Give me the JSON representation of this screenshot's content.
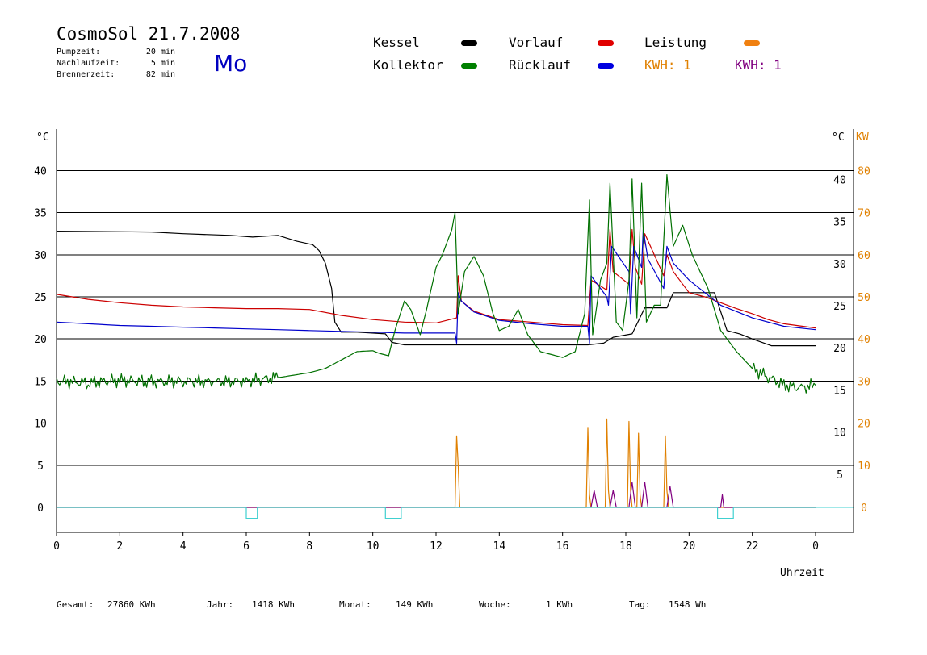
{
  "header": {
    "title": "CosmoSol 21.7.2008",
    "day": "Mo",
    "stats": [
      {
        "label": "Pumpzeit:",
        "value": "20 min"
      },
      {
        "label": "Nachlaufzeit:",
        "value": "5 min"
      },
      {
        "label": "Brennerzeit:",
        "value": "82 min"
      }
    ]
  },
  "legend": {
    "kessel": {
      "label": "Kessel",
      "color": "#000000"
    },
    "kollektor": {
      "label": "Kollektor",
      "color": "#008000"
    },
    "vorlauf": {
      "label": "Vorlauf",
      "color": "#e00000"
    },
    "ruecklauf": {
      "label": "Rücklauf",
      "color": "#0000e0"
    },
    "leistung": {
      "label": "Leistung",
      "color": "#f08010"
    },
    "kwh_orange": {
      "label": "KWH: 1",
      "color": "#e08000"
    },
    "kwh_purple": {
      "label": "KWH: 1",
      "color": "#800080"
    }
  },
  "footer": {
    "gesamt": {
      "label": "Gesamt:",
      "value": "27860 KWh"
    },
    "jahr": {
      "label": "Jahr:",
      "value": "1418 KWh"
    },
    "monat": {
      "label": "Monat:",
      "value": "149 KWh"
    },
    "woche": {
      "label": "Woche:",
      "value": "1 KWh"
    },
    "tag": {
      "label": "Tag:",
      "value": "1548 Wh"
    }
  },
  "chart_data": {
    "type": "line",
    "xlabel": "Uhrzeit",
    "ylabel_left": "°C",
    "ylabel_right_temp": "°C",
    "ylabel_right_power": "KW",
    "xlim": [
      0,
      24
    ],
    "ylim": [
      0,
      40
    ],
    "y2lim": [
      0,
      80
    ],
    "grid": true,
    "x_ticks": [
      "0",
      "2",
      "4",
      "6",
      "8",
      "10",
      "12",
      "14",
      "16",
      "18",
      "20",
      "22",
      "0"
    ],
    "y_ticks": [
      "0",
      "5",
      "10",
      "15",
      "20",
      "25",
      "30",
      "35",
      "40"
    ],
    "y_ticks_right": [
      "5",
      "10",
      "15",
      "20",
      "25",
      "30",
      "35",
      "40"
    ],
    "y2_ticks": [
      "0",
      "10",
      "20",
      "30",
      "40",
      "50",
      "60",
      "70",
      "80"
    ],
    "series": [
      {
        "name": "Kessel",
        "color": "#000000",
        "x": [
          0,
          3,
          4,
          5.5,
          6.2,
          7,
          7.6,
          8.1,
          8.3,
          8.5,
          8.7,
          8.8,
          9.0,
          9.5,
          10.4,
          10.6,
          11.0,
          12.0,
          12.7,
          14,
          16,
          16.8,
          17.3,
          17.6,
          18.2,
          18.6,
          19.3,
          19.5,
          20,
          20.8,
          21.2,
          21.6,
          22,
          22.6,
          23.0,
          24
        ],
        "y": [
          32.8,
          32.7,
          32.5,
          32.3,
          32.1,
          32.3,
          31.6,
          31.2,
          30.5,
          29,
          26,
          22,
          20.8,
          20.8,
          20.6,
          19.6,
          19.3,
          19.3,
          19.3,
          19.3,
          19.3,
          19.3,
          19.5,
          20.2,
          20.6,
          23.7,
          23.7,
          25.5,
          25.5,
          25.5,
          21,
          20.6,
          20.0,
          19.2,
          19.2,
          19.2
        ]
      },
      {
        "name": "Vorlauf",
        "color": "#cc0000",
        "x": [
          0,
          1,
          2,
          3,
          4,
          5,
          6,
          7,
          8,
          9,
          10,
          11,
          12,
          12.65,
          12.7,
          12.8,
          13.2,
          14,
          15,
          16,
          16.8,
          16.9,
          17.4,
          17.5,
          17.6,
          18.1,
          18.2,
          18.3,
          18.5,
          18.6,
          19.2,
          19.3,
          19.5,
          20,
          20.5,
          21,
          21.5,
          22,
          22.5,
          23,
          24
        ],
        "y": [
          25.3,
          24.7,
          24.3,
          24,
          23.8,
          23.7,
          23.6,
          23.6,
          23.5,
          22.8,
          22.3,
          22.0,
          21.9,
          22.5,
          27.5,
          24.5,
          23.3,
          22.3,
          22,
          21.7,
          21.6,
          27,
          25.8,
          33,
          28,
          26.5,
          33,
          28.5,
          26.5,
          32.5,
          27.5,
          30,
          28,
          25.5,
          25,
          24.3,
          23.6,
          23,
          22.3,
          21.8,
          21.3
        ]
      },
      {
        "name": "Rücklauf",
        "color": "#0000cc",
        "x": [
          0,
          1,
          2,
          3,
          4,
          5,
          6,
          7,
          8,
          9,
          10,
          11,
          12,
          12.6,
          12.65,
          12.7,
          12.8,
          13.2,
          14,
          15,
          16,
          16.8,
          16.85,
          16.9,
          17.4,
          17.45,
          17.55,
          18.1,
          18.15,
          18.25,
          18.5,
          18.55,
          18.7,
          19.2,
          19.3,
          19.5,
          20,
          20.5,
          21,
          22,
          23,
          24
        ],
        "y": [
          22,
          21.8,
          21.6,
          21.5,
          21.4,
          21.3,
          21.2,
          21.1,
          21,
          20.9,
          20.8,
          20.7,
          20.7,
          20.7,
          19.5,
          25.5,
          24.5,
          23.2,
          22.2,
          21.8,
          21.5,
          21.5,
          19.5,
          27.5,
          25,
          24,
          31,
          28,
          23,
          31,
          28.5,
          33,
          29.5,
          26,
          31,
          29,
          27,
          25.5,
          24,
          22.5,
          21.5,
          21.1
        ]
      },
      {
        "name": "Kollektor",
        "color": "#007000",
        "x": [
          0,
          1,
          2,
          3,
          4,
          5,
          6,
          7,
          8,
          8.5,
          9,
          9.5,
          10,
          10.2,
          10.5,
          10.7,
          11,
          11.2,
          11.5,
          11.7,
          12,
          12.2,
          12.5,
          12.6,
          12.7,
          12.9,
          13.2,
          13.5,
          13.8,
          14,
          14.3,
          14.6,
          14.9,
          15.3,
          15.6,
          16,
          16.4,
          16.7,
          16.85,
          16.95,
          17.2,
          17.4,
          17.5,
          17.7,
          17.9,
          18.1,
          18.2,
          18.35,
          18.5,
          18.65,
          18.9,
          19.1,
          19.3,
          19.5,
          19.8,
          20.1,
          20.6,
          21,
          21.5,
          22,
          22.5,
          23,
          23.5,
          24
        ],
        "y": [
          15,
          14.8,
          15.1,
          14.9,
          15,
          14.9,
          15,
          15.4,
          16,
          16.5,
          17.5,
          18.5,
          18.6,
          18.3,
          18,
          21,
          24.5,
          23.5,
          20.5,
          23.5,
          28.5,
          30,
          33,
          35,
          23,
          28,
          29.8,
          27.5,
          23,
          21,
          21.5,
          23.5,
          20.5,
          18.5,
          18.2,
          17.8,
          18.5,
          23,
          36.5,
          20.5,
          27,
          29,
          38.5,
          22,
          21,
          27,
          39,
          22.5,
          38.5,
          22,
          24,
          24,
          39.5,
          31,
          33.5,
          30,
          26,
          21,
          18.5,
          16.5,
          15.5,
          14.5,
          14.2,
          14.5
        ]
      },
      {
        "name": "Leistung",
        "color": "#e08000",
        "x": [
          0,
          12.6,
          12.65,
          12.7,
          12.75,
          16.75,
          16.8,
          16.85,
          16.9,
          17.35,
          17.4,
          17.45,
          17.5,
          18.05,
          18.1,
          18.15,
          18.2,
          18.35,
          18.4,
          18.45,
          18.5,
          19.2,
          19.25,
          19.3,
          19.35,
          24
        ],
        "y": [
          0,
          0,
          8.5,
          5,
          0,
          0,
          9.5,
          1.5,
          0,
          0,
          10.5,
          2,
          0,
          0,
          10.2,
          2,
          0,
          0,
          8.8,
          1.5,
          0,
          0,
          8.5,
          2,
          0,
          0
        ]
      },
      {
        "name": "KWH",
        "color": "#800080",
        "x": [
          0,
          16.9,
          17.0,
          17.1,
          17.5,
          17.6,
          17.7,
          18.1,
          18.2,
          18.3,
          18.5,
          18.6,
          18.7,
          19.3,
          19.4,
          19.5,
          21,
          21.05,
          21.1,
          24
        ],
        "y": [
          0,
          0,
          2,
          0,
          0,
          2,
          0,
          0,
          3,
          0,
          0,
          3,
          0,
          0,
          2.5,
          0,
          0,
          1.5,
          0,
          0
        ]
      },
      {
        "name": "Pumpe",
        "color": "#40d0d0",
        "x": [
          0,
          6,
          6,
          6.35,
          6.35,
          10.4,
          10.4,
          10.9,
          10.9,
          20.9,
          20.9,
          21.4,
          21.4,
          24
        ],
        "y": [
          0,
          0,
          -1.3,
          -1.3,
          0,
          0,
          -1.3,
          -1.3,
          0,
          0,
          -1.3,
          -1.3,
          0,
          0
        ]
      }
    ]
  }
}
